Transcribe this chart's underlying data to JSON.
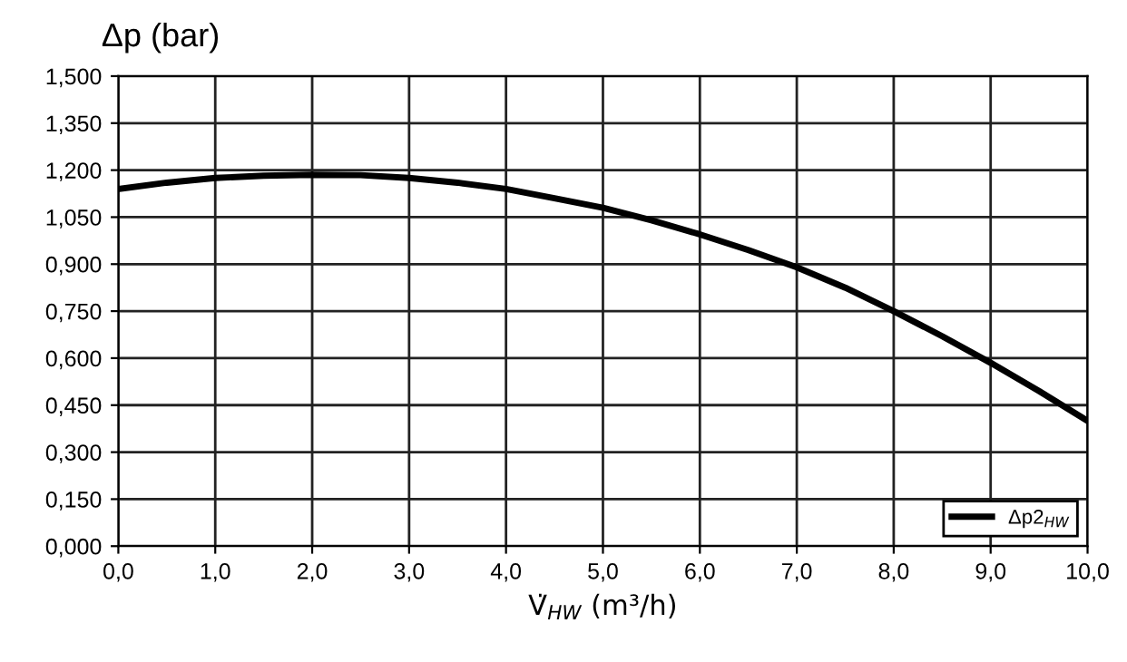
{
  "chart_data": {
    "type": "line",
    "ylabel": "Δp (bar)",
    "xlabel": "V̇$_{HW}$ (m³/h)",
    "x": [
      0,
      0.5,
      1,
      1.5,
      2,
      2.5,
      3,
      3.5,
      4,
      4.5,
      5,
      5.5,
      6,
      6.5,
      7,
      7.5,
      8,
      8.5,
      9,
      9.5,
      10
    ],
    "series": [
      {
        "name": "Δp2$_{HW}$",
        "color": "#000000",
        "values": [
          1.14,
          1.16,
          1.175,
          1.182,
          1.185,
          1.184,
          1.175,
          1.16,
          1.14,
          1.11,
          1.08,
          1.04,
          0.995,
          0.945,
          0.89,
          0.825,
          0.75,
          0.67,
          0.585,
          0.495,
          0.4
        ]
      }
    ],
    "xlim": [
      0,
      10
    ],
    "ylim": [
      0,
      1.5
    ],
    "xticks": [
      {
        "value": 0,
        "label": "0,0"
      },
      {
        "value": 1,
        "label": "1,0"
      },
      {
        "value": 2,
        "label": "2,0"
      },
      {
        "value": 3,
        "label": "3,0"
      },
      {
        "value": 4,
        "label": "4,0"
      },
      {
        "value": 5,
        "label": "5,0"
      },
      {
        "value": 6,
        "label": "6,0"
      },
      {
        "value": 7,
        "label": "7,0"
      },
      {
        "value": 8,
        "label": "8,0"
      },
      {
        "value": 9,
        "label": "9,0"
      },
      {
        "value": 10,
        "label": "10,0"
      }
    ],
    "yticks": [
      {
        "value": 0,
        "label": "0,000"
      },
      {
        "value": 0.15,
        "label": "0,150"
      },
      {
        "value": 0.3,
        "label": "0,300"
      },
      {
        "value": 0.45,
        "label": "0,450"
      },
      {
        "value": 0.6,
        "label": "0,600"
      },
      {
        "value": 0.75,
        "label": "0,750"
      },
      {
        "value": 0.9,
        "label": "0,900"
      },
      {
        "value": 1.05,
        "label": "1,050"
      },
      {
        "value": 1.2,
        "label": "1,200"
      },
      {
        "value": 1.35,
        "label": "1,350"
      },
      {
        "value": 1.5,
        "label": "1,500"
      }
    ],
    "grid": true,
    "legend": "bottom right",
    "marker": "none",
    "line_style": "solid"
  }
}
